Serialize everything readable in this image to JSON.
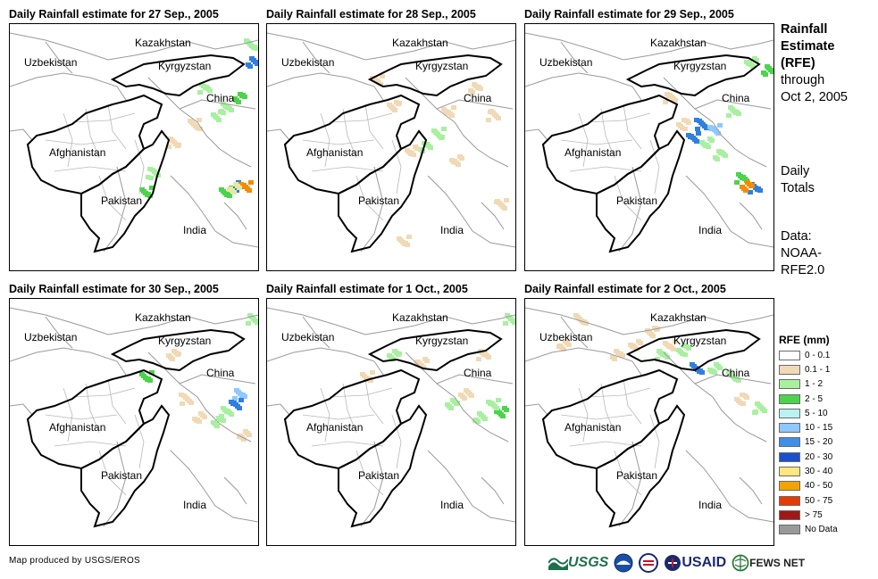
{
  "side_title": [
    "Rainfall",
    "Estimate",
    "(RFE)"
  ],
  "side_period": [
    "through",
    "Oct 2, 2005"
  ],
  "side_totals": [
    "Daily",
    "Totals"
  ],
  "side_source": [
    "Data:",
    "NOAA-",
    "RFE2.0"
  ],
  "map_labels": {
    "kazakhstan": "Kazakhstan",
    "uzbekistan": "Uzbekistan",
    "kyrgyzstan": "Kyrgyzstan",
    "china": "China",
    "afghanistan": "Afghanistan",
    "pakistan": "Pakistan",
    "india": "India"
  },
  "panels": [
    {
      "title": "Daily Rainfall estimate for 27 Sep., 2005",
      "rain": [
        [
          270,
          40,
          "#2f7fe0"
        ],
        [
          255,
          80,
          "#4bd44b"
        ],
        [
          240,
          92,
          "#a8f0a0"
        ],
        [
          215,
          70,
          "#a8f0a0"
        ],
        [
          158,
          165,
          "#a8f0a0"
        ],
        [
          150,
          185,
          "#4bd44b"
        ],
        [
          240,
          185,
          "#4bd44b"
        ],
        [
          255,
          180,
          "#2f7fe0"
        ],
        [
          262,
          180,
          "#f28c00"
        ],
        [
          248,
          182,
          "#e8e8a0"
        ],
        [
          230,
          100,
          "#a8f0a0"
        ],
        [
          205,
          110,
          "#f1d9b5"
        ],
        [
          180,
          130,
          "#f1d9b5"
        ],
        [
          268,
          20,
          "#a8f0a0"
        ]
      ]
    },
    {
      "title": "Daily Rainfall estimate for 28 Sep., 2005",
      "rain": [
        [
          190,
          120,
          "#a8f0a0"
        ],
        [
          175,
          135,
          "#a8f0a0"
        ],
        [
          200,
          95,
          "#f1d9b5"
        ],
        [
          230,
          70,
          "#f1d9b5"
        ],
        [
          250,
          100,
          "#f1d9b5"
        ],
        [
          160,
          140,
          "#f1d9b5"
        ],
        [
          140,
          90,
          "#f1d9b5"
        ],
        [
          120,
          60,
          "#f1d9b5"
        ],
        [
          260,
          200,
          "#f1d9b5"
        ],
        [
          150,
          240,
          "#f1d9b5"
        ],
        [
          210,
          150,
          "#f1d9b5"
        ]
      ]
    },
    {
      "title": "Daily Rainfall estimate for 29 Sep., 2005",
      "rain": [
        [
          195,
          110,
          "#2f7fe0"
        ],
        [
          210,
          115,
          "#8fc8ff"
        ],
        [
          185,
          125,
          "#2f7fe0"
        ],
        [
          200,
          130,
          "#a8f0a0"
        ],
        [
          240,
          170,
          "#4bd44b"
        ],
        [
          255,
          182,
          "#2f7fe0"
        ],
        [
          245,
          180,
          "#f28c00"
        ],
        [
          270,
          50,
          "#4bd44b"
        ],
        [
          250,
          40,
          "#a8f0a0"
        ],
        [
          230,
          95,
          "#a8f0a0"
        ],
        [
          175,
          110,
          "#f1d9b5"
        ],
        [
          160,
          80,
          "#f1d9b5"
        ],
        [
          215,
          145,
          "#a8f0a0"
        ]
      ]
    },
    {
      "title": "Daily Rainfall estimate for 30 Sep., 2005",
      "rain": [
        [
          255,
          105,
          "#8fc8ff"
        ],
        [
          250,
          115,
          "#2f7fe0"
        ],
        [
          240,
          125,
          "#a8f0a0"
        ],
        [
          230,
          135,
          "#a8f0a0"
        ],
        [
          210,
          130,
          "#f1d9b5"
        ],
        [
          195,
          110,
          "#f1d9b5"
        ],
        [
          270,
          20,
          "#a8f0a0"
        ],
        [
          150,
          85,
          "#4bd44b"
        ],
        [
          260,
          150,
          "#f1d9b5"
        ],
        [
          180,
          60,
          "#f1d9b5"
        ]
      ]
    },
    {
      "title": "Daily Rainfall estimate for 1 Oct., 2005",
      "rain": [
        [
          260,
          125,
          "#4bd44b"
        ],
        [
          250,
          115,
          "#a8f0a0"
        ],
        [
          235,
          130,
          "#a8f0a0"
        ],
        [
          220,
          105,
          "#f1d9b5"
        ],
        [
          205,
          115,
          "#a8f0a0"
        ],
        [
          170,
          70,
          "#f1d9b5"
        ],
        [
          140,
          60,
          "#a8f0a0"
        ],
        [
          110,
          85,
          "#f1d9b5"
        ],
        [
          270,
          20,
          "#a8f0a0"
        ],
        [
          240,
          60,
          "#f1d9b5"
        ]
      ]
    },
    {
      "title": "Daily Rainfall estimate for 2 Oct., 2005",
      "rain": [
        [
          140,
          35,
          "#f1d9b5"
        ],
        [
          160,
          50,
          "#f1d9b5"
        ],
        [
          120,
          50,
          "#f1d9b5"
        ],
        [
          150,
          60,
          "#a8f0a0"
        ],
        [
          175,
          55,
          "#a8f0a0"
        ],
        [
          190,
          75,
          "#2f7fe0"
        ],
        [
          210,
          75,
          "#a8f0a0"
        ],
        [
          230,
          85,
          "#a8f0a0"
        ],
        [
          100,
          60,
          "#f1d9b5"
        ],
        [
          60,
          20,
          "#f1d9b5"
        ],
        [
          40,
          50,
          "#f1d9b5"
        ],
        [
          240,
          110,
          "#f1d9b5"
        ],
        [
          260,
          120,
          "#a8f0a0"
        ]
      ]
    }
  ],
  "legend": {
    "title": "RFE (mm)",
    "items": [
      {
        "label": "0 - 0.1",
        "color": "#ffffff"
      },
      {
        "label": "0.1 - 1",
        "color": "#f1d9b5"
      },
      {
        "label": "1 - 2",
        "color": "#a8f0a0"
      },
      {
        "label": "2 - 5",
        "color": "#4bd44b"
      },
      {
        "label": "5 - 10",
        "color": "#b9f2f2"
      },
      {
        "label": "10 - 15",
        "color": "#8fc8ff"
      },
      {
        "label": "15 - 20",
        "color": "#3f8ee8"
      },
      {
        "label": "20 - 30",
        "color": "#1a4fd0"
      },
      {
        "label": "30 - 40",
        "color": "#ffe680"
      },
      {
        "label": "40 - 50",
        "color": "#f5a300"
      },
      {
        "label": "50 - 75",
        "color": "#e83b00"
      },
      {
        "label": "> 75",
        "color": "#a01818"
      },
      {
        "label": "No Data",
        "color": "#999999"
      }
    ]
  },
  "footer": {
    "credit": "Map produced by USGS/EROS",
    "usgs": "USGS",
    "usaid": "USAID",
    "fews": "FEWS NET"
  }
}
